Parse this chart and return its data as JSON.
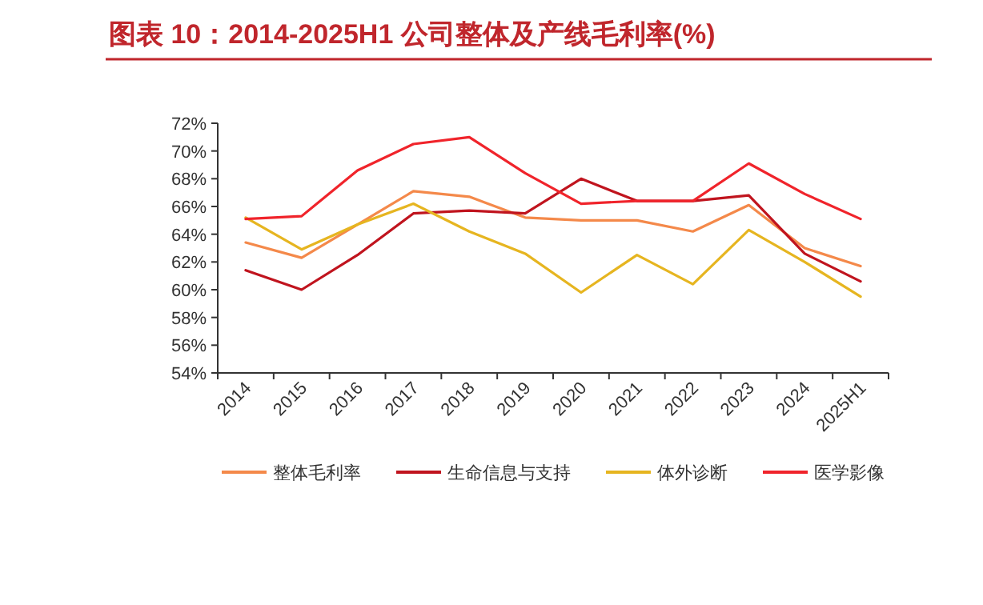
{
  "chart_data": {
    "type": "line",
    "title": "图表 10：2014-2025H1 公司整体及产线毛利率(%)",
    "categories": [
      "2014",
      "2015",
      "2016",
      "2017",
      "2018",
      "2019",
      "2020",
      "2021",
      "2022",
      "2023",
      "2024",
      "2025H1"
    ],
    "series": [
      {
        "name": "整体毛利率",
        "color": "#f4894a",
        "values": [
          63.4,
          62.3,
          64.7,
          67.1,
          66.7,
          65.2,
          65.0,
          65.0,
          64.2,
          66.1,
          63.0,
          61.7
        ]
      },
      {
        "name": "生命信息与支持",
        "color": "#c0141e",
        "values": [
          61.4,
          60.0,
          62.5,
          65.5,
          65.7,
          65.5,
          68.0,
          66.4,
          66.4,
          66.8,
          62.6,
          60.6
        ]
      },
      {
        "name": "体外诊断",
        "color": "#e6b520",
        "values": [
          65.2,
          62.9,
          64.7,
          66.2,
          64.2,
          62.6,
          59.8,
          62.5,
          60.4,
          64.3,
          62.0,
          59.5
        ]
      },
      {
        "name": "医学影像",
        "color": "#f0242b",
        "values": [
          65.1,
          65.3,
          68.6,
          70.5,
          71.0,
          68.4,
          66.2,
          66.4,
          66.4,
          69.1,
          66.9,
          65.1
        ]
      }
    ],
    "ylim": [
      54,
      72
    ],
    "yticks": [
      {
        "value": 54,
        "label": "54%"
      },
      {
        "value": 56,
        "label": "56%"
      },
      {
        "value": 58,
        "label": "58%"
      },
      {
        "value": 60,
        "label": "60%"
      },
      {
        "value": 62,
        "label": "62%"
      },
      {
        "value": 64,
        "label": "64%"
      },
      {
        "value": 66,
        "label": "66%"
      },
      {
        "value": 68,
        "label": "68%"
      },
      {
        "value": 70,
        "label": "70%"
      },
      {
        "value": 72,
        "label": "72%"
      }
    ],
    "grid": false,
    "legend": "bottom",
    "marker": "none",
    "line_style": "solid"
  }
}
